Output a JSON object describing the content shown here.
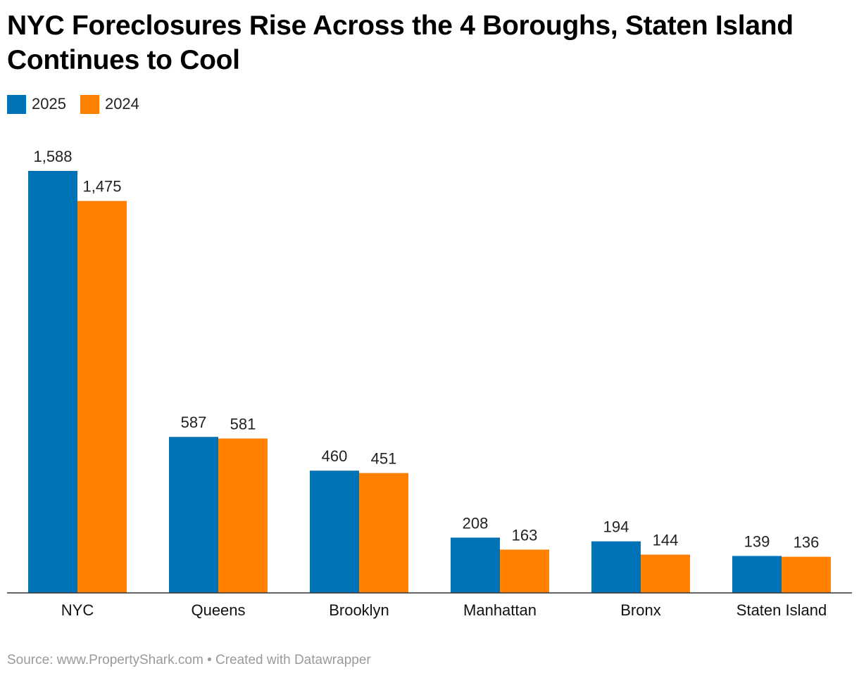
{
  "title": "NYC Foreclosures Rise Across the 4 Boroughs, Staten Island Continues to Cool",
  "footer": {
    "source_label": "Source:",
    "source_link": "www.PropertyShark.com",
    "separator": "•",
    "created_with": "Created with Datawrapper"
  },
  "colors": {
    "series_2025": "#0073b7",
    "series_2024": "#ff7f00",
    "axis": "#333333"
  },
  "chart_data": {
    "type": "bar",
    "title": "NYC Foreclosures Rise Across the 4 Boroughs, Staten Island Continues to Cool",
    "xlabel": "",
    "ylabel": "",
    "ylim": [
      0,
      1588
    ],
    "grid": false,
    "legend_placement": "top-left",
    "categories": [
      "NYC",
      "Queens",
      "Brooklyn",
      "Manhattan",
      "Bronx",
      "Staten Island"
    ],
    "series": [
      {
        "name": "2025",
        "color": "#0073b7",
        "values": [
          1588,
          587,
          460,
          208,
          194,
          139
        ],
        "labels": [
          "1,588",
          "587",
          "460",
          "208",
          "194",
          "139"
        ]
      },
      {
        "name": "2024",
        "color": "#ff7f00",
        "values": [
          1475,
          581,
          451,
          163,
          144,
          136
        ],
        "labels": [
          "1,475",
          "581",
          "451",
          "163",
          "144",
          "136"
        ]
      }
    ]
  }
}
